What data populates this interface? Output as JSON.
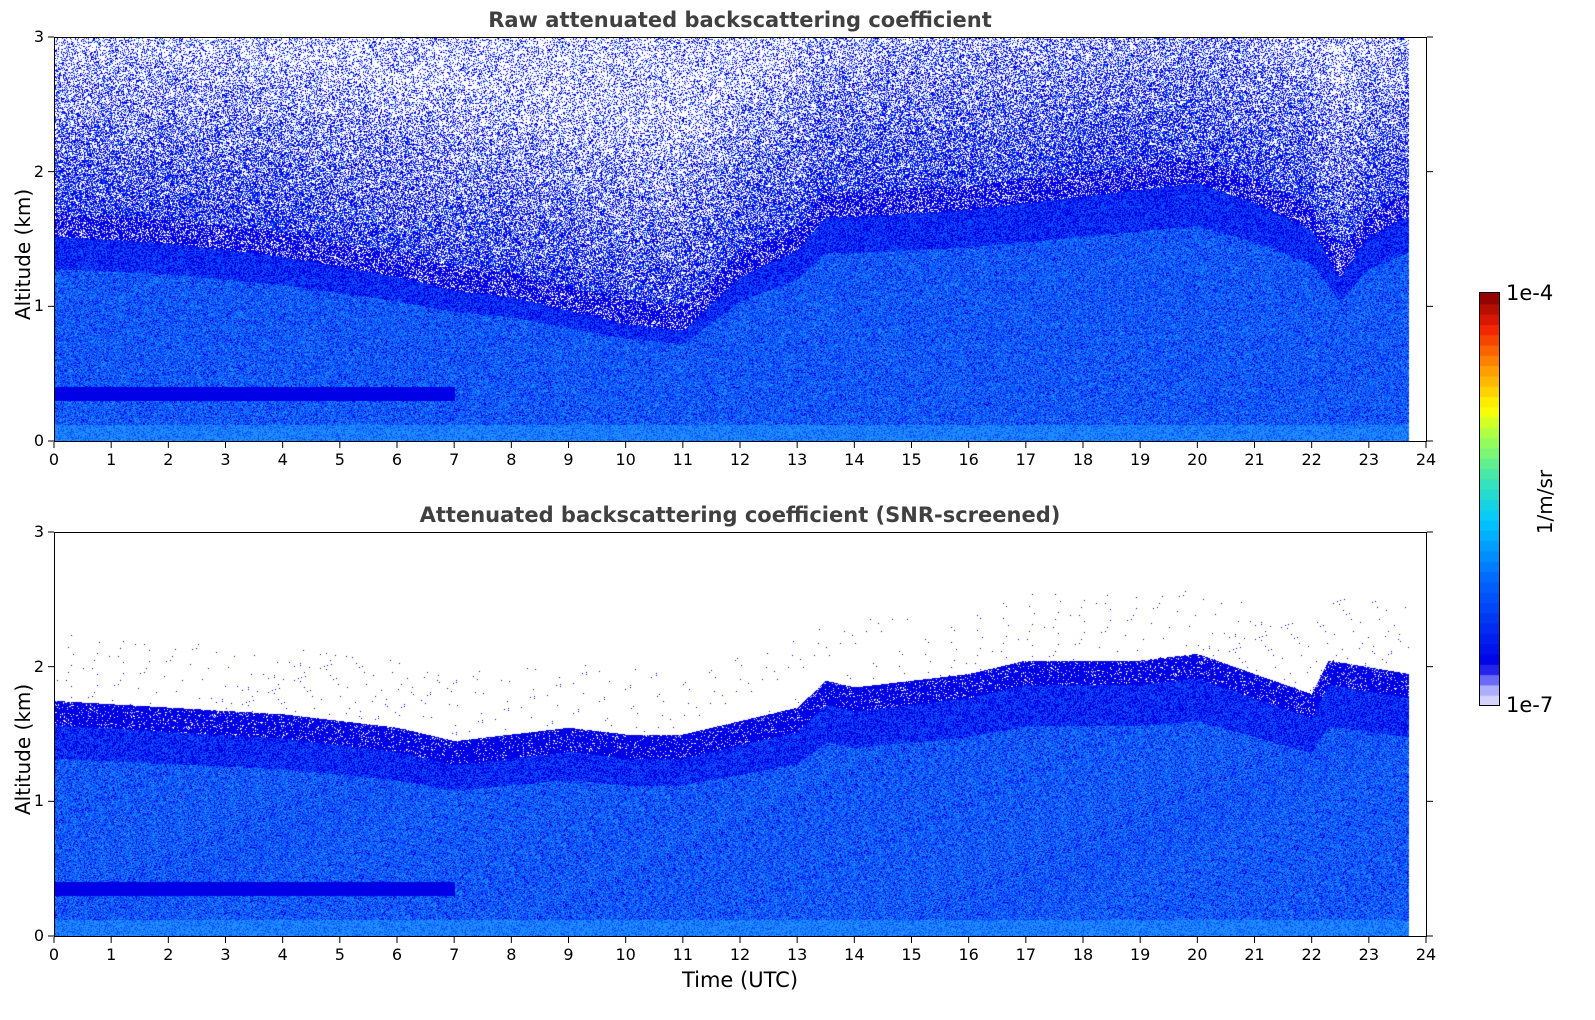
{
  "chart_data": [
    {
      "type": "heatmap",
      "title": "Raw attenuated backscattering coefficient",
      "xlabel": "",
      "ylabel": "Altitude (km)",
      "xlim": [
        0,
        24
      ],
      "ylim": [
        0,
        3
      ],
      "x_ticks": [
        "0",
        "1",
        "2",
        "3",
        "4",
        "5",
        "6",
        "7",
        "8",
        "9",
        "10",
        "11",
        "12",
        "13",
        "14",
        "15",
        "16",
        "17",
        "18",
        "19",
        "20",
        "21",
        "22",
        "23",
        "24"
      ],
      "y_ticks": [
        "0",
        "1",
        "2",
        "3"
      ],
      "data_end_time": 23.7,
      "boundary_layer_top_km": {
        "x": [
          0,
          2,
          4,
          6,
          7,
          8,
          9,
          10,
          11,
          12,
          13,
          13.5,
          14,
          16,
          18,
          19,
          20,
          21,
          22,
          22.5,
          23,
          23.7
        ],
        "y": [
          1.6,
          1.55,
          1.45,
          1.3,
          1.2,
          1.15,
          1.05,
          0.95,
          0.9,
          1.3,
          1.5,
          1.75,
          1.75,
          1.8,
          1.9,
          1.95,
          2.0,
          1.85,
          1.65,
          1.3,
          1.6,
          1.75
        ]
      },
      "noise": "high above boundary layer"
    },
    {
      "type": "heatmap",
      "title": "Attenuated backscattering coefficient (SNR-screened)",
      "xlabel": "Time (UTC)",
      "ylabel": "Altitude (km)",
      "xlim": [
        0,
        24
      ],
      "ylim": [
        0,
        3
      ],
      "x_ticks": [
        "0",
        "1",
        "2",
        "3",
        "4",
        "5",
        "6",
        "7",
        "8",
        "9",
        "10",
        "11",
        "12",
        "13",
        "14",
        "15",
        "16",
        "17",
        "18",
        "19",
        "20",
        "21",
        "22",
        "23",
        "24"
      ],
      "y_ticks": [
        "0",
        "1",
        "2",
        "3"
      ],
      "data_end_time": 23.7,
      "boundary_layer_top_km": {
        "x": [
          0,
          2,
          4,
          6,
          7,
          8,
          9,
          10,
          11,
          12,
          13,
          13.5,
          14,
          16,
          17,
          18,
          19,
          20,
          21,
          22,
          22.3,
          23,
          23.7
        ],
        "y": [
          1.65,
          1.6,
          1.55,
          1.45,
          1.35,
          1.4,
          1.45,
          1.4,
          1.4,
          1.5,
          1.6,
          1.8,
          1.75,
          1.85,
          1.95,
          1.95,
          1.95,
          2.0,
          1.85,
          1.7,
          1.95,
          1.9,
          1.85
        ]
      },
      "noise": "screened (white above boundary layer)"
    }
  ],
  "colorbar": {
    "max_label": "1e-4",
    "min_label": "1e-7",
    "unit": "1/m/sr",
    "colormap": "jet"
  },
  "colors": {
    "dark_blue": "#0000e6",
    "mid_blue": "#0a50ff",
    "light_blue": "#1e8cff",
    "title_gray": "#404040"
  }
}
